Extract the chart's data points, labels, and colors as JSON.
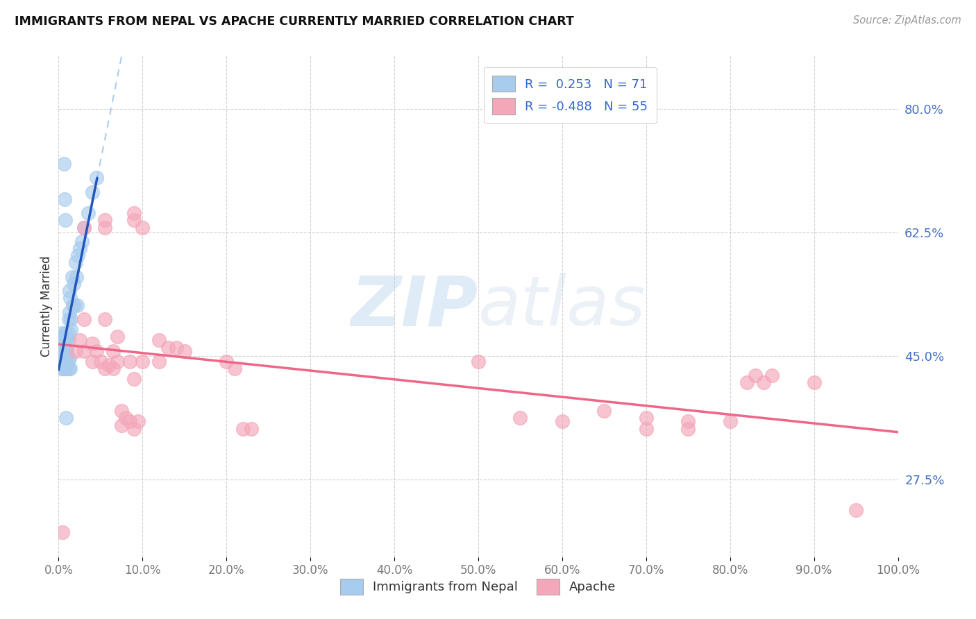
{
  "title": "IMMIGRANTS FROM NEPAL VS APACHE CURRENTLY MARRIED CORRELATION CHART",
  "source": "Source: ZipAtlas.com",
  "ylabel": "Currently Married",
  "ytick_vals": [
    0.275,
    0.45,
    0.625,
    0.8
  ],
  "xlim": [
    0.0,
    1.0
  ],
  "ylim": [
    0.165,
    0.875
  ],
  "blue_color": "#A8CCEE",
  "pink_color": "#F4A7B9",
  "blue_line_color": "#2255BB",
  "pink_line_color": "#EE6688",
  "dashed_line_color": "#AACCEE",
  "watermark_zip": "ZIP",
  "watermark_atlas": "atlas",
  "nepal_points": [
    [
      0.002,
      0.472
    ],
    [
      0.002,
      0.457
    ],
    [
      0.003,
      0.462
    ],
    [
      0.003,
      0.442
    ],
    [
      0.004,
      0.472
    ],
    [
      0.004,
      0.457
    ],
    [
      0.004,
      0.452
    ],
    [
      0.005,
      0.462
    ],
    [
      0.005,
      0.452
    ],
    [
      0.005,
      0.442
    ],
    [
      0.006,
      0.472
    ],
    [
      0.006,
      0.462
    ],
    [
      0.006,
      0.457
    ],
    [
      0.006,
      0.452
    ],
    [
      0.007,
      0.467
    ],
    [
      0.007,
      0.457
    ],
    [
      0.007,
      0.442
    ],
    [
      0.008,
      0.482
    ],
    [
      0.008,
      0.467
    ],
    [
      0.008,
      0.457
    ],
    [
      0.009,
      0.472
    ],
    [
      0.009,
      0.462
    ],
    [
      0.009,
      0.452
    ],
    [
      0.01,
      0.477
    ],
    [
      0.01,
      0.462
    ],
    [
      0.01,
      0.457
    ],
    [
      0.012,
      0.502
    ],
    [
      0.012,
      0.482
    ],
    [
      0.012,
      0.472
    ],
    [
      0.013,
      0.542
    ],
    [
      0.013,
      0.512
    ],
    [
      0.014,
      0.532
    ],
    [
      0.015,
      0.502
    ],
    [
      0.015,
      0.487
    ],
    [
      0.016,
      0.562
    ],
    [
      0.017,
      0.522
    ],
    [
      0.018,
      0.552
    ],
    [
      0.019,
      0.522
    ],
    [
      0.02,
      0.582
    ],
    [
      0.021,
      0.562
    ],
    [
      0.022,
      0.522
    ],
    [
      0.023,
      0.592
    ],
    [
      0.025,
      0.602
    ],
    [
      0.028,
      0.612
    ],
    [
      0.03,
      0.632
    ],
    [
      0.035,
      0.652
    ],
    [
      0.04,
      0.682
    ],
    [
      0.045,
      0.702
    ],
    [
      0.003,
      0.437
    ],
    [
      0.004,
      0.432
    ],
    [
      0.005,
      0.432
    ],
    [
      0.006,
      0.442
    ],
    [
      0.007,
      0.432
    ],
    [
      0.008,
      0.432
    ],
    [
      0.009,
      0.442
    ],
    [
      0.01,
      0.432
    ],
    [
      0.011,
      0.442
    ],
    [
      0.012,
      0.432
    ],
    [
      0.013,
      0.447
    ],
    [
      0.014,
      0.432
    ],
    [
      0.006,
      0.722
    ],
    [
      0.007,
      0.672
    ],
    [
      0.008,
      0.642
    ],
    [
      0.009,
      0.362
    ],
    [
      0.003,
      0.477
    ],
    [
      0.004,
      0.482
    ],
    [
      0.005,
      0.477
    ],
    [
      0.006,
      0.477
    ],
    [
      0.007,
      0.477
    ],
    [
      0.008,
      0.472
    ]
  ],
  "apache_points": [
    [
      0.005,
      0.2
    ],
    [
      0.02,
      0.457
    ],
    [
      0.025,
      0.472
    ],
    [
      0.03,
      0.457
    ],
    [
      0.03,
      0.502
    ],
    [
      0.04,
      0.467
    ],
    [
      0.04,
      0.442
    ],
    [
      0.045,
      0.457
    ],
    [
      0.05,
      0.442
    ],
    [
      0.055,
      0.432
    ],
    [
      0.055,
      0.502
    ],
    [
      0.06,
      0.437
    ],
    [
      0.065,
      0.432
    ],
    [
      0.065,
      0.457
    ],
    [
      0.07,
      0.442
    ],
    [
      0.07,
      0.477
    ],
    [
      0.075,
      0.372
    ],
    [
      0.075,
      0.352
    ],
    [
      0.08,
      0.362
    ],
    [
      0.085,
      0.357
    ],
    [
      0.085,
      0.442
    ],
    [
      0.09,
      0.347
    ],
    [
      0.09,
      0.417
    ],
    [
      0.095,
      0.357
    ],
    [
      0.1,
      0.442
    ],
    [
      0.12,
      0.472
    ],
    [
      0.12,
      0.442
    ],
    [
      0.13,
      0.462
    ],
    [
      0.14,
      0.462
    ],
    [
      0.15,
      0.457
    ],
    [
      0.2,
      0.442
    ],
    [
      0.21,
      0.432
    ],
    [
      0.22,
      0.347
    ],
    [
      0.23,
      0.347
    ],
    [
      0.09,
      0.652
    ],
    [
      0.09,
      0.642
    ],
    [
      0.1,
      0.632
    ],
    [
      0.055,
      0.632
    ],
    [
      0.055,
      0.642
    ],
    [
      0.03,
      0.632
    ],
    [
      0.5,
      0.442
    ],
    [
      0.55,
      0.362
    ],
    [
      0.6,
      0.357
    ],
    [
      0.65,
      0.372
    ],
    [
      0.7,
      0.362
    ],
    [
      0.7,
      0.347
    ],
    [
      0.75,
      0.357
    ],
    [
      0.75,
      0.347
    ],
    [
      0.8,
      0.357
    ],
    [
      0.82,
      0.412
    ],
    [
      0.83,
      0.422
    ],
    [
      0.84,
      0.412
    ],
    [
      0.85,
      0.422
    ],
    [
      0.9,
      0.412
    ],
    [
      0.95,
      0.232
    ]
  ]
}
